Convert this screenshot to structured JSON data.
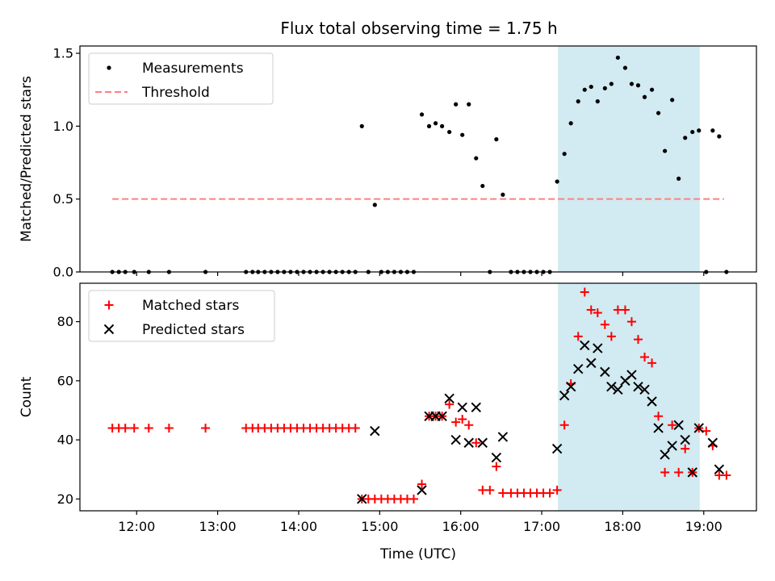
{
  "chart_data": {
    "title": "Flux total observing time = 1.75 h",
    "xlabel": "Time (UTC)",
    "x_ticks": [
      "12:00",
      "13:00",
      "14:00",
      "15:00",
      "16:00",
      "17:00",
      "18:00",
      "19:00"
    ],
    "x_tick_hours": [
      12,
      13,
      14,
      15,
      16,
      17,
      18,
      19
    ],
    "x_range_hours": [
      11.3,
      19.65
    ],
    "shaded_span_hours": [
      17.2,
      18.95
    ],
    "shade_color": "#add8e6",
    "panels": [
      {
        "type": "scatter",
        "ylabel": "Matched/Predicted stars",
        "ylim": [
          0,
          1.55
        ],
        "y_ticks": [
          0.0,
          0.5,
          1.0,
          1.5
        ],
        "y_tick_labels": [
          "0.0",
          "0.5",
          "1.0",
          "1.5"
        ],
        "legend_placement": "top-left",
        "series": [
          {
            "name": "Measurements",
            "marker": "dot",
            "color": "#000000",
            "points": [
              [
                11.7,
                0
              ],
              [
                11.78,
                0
              ],
              [
                11.86,
                0
              ],
              [
                11.97,
                0
              ],
              [
                12.15,
                0
              ],
              [
                12.4,
                0
              ],
              [
                12.85,
                0
              ],
              [
                13.35,
                0
              ],
              [
                13.43,
                0
              ],
              [
                13.5,
                0
              ],
              [
                13.58,
                0
              ],
              [
                13.66,
                0
              ],
              [
                13.74,
                0
              ],
              [
                13.82,
                0
              ],
              [
                13.9,
                0
              ],
              [
                13.98,
                0
              ],
              [
                14.06,
                0
              ],
              [
                14.14,
                0
              ],
              [
                14.22,
                0
              ],
              [
                14.3,
                0
              ],
              [
                14.38,
                0
              ],
              [
                14.46,
                0
              ],
              [
                14.54,
                0
              ],
              [
                14.62,
                0
              ],
              [
                14.7,
                0
              ],
              [
                14.78,
                1.0
              ],
              [
                14.86,
                0
              ],
              [
                14.94,
                0.46
              ],
              [
                15.02,
                0
              ],
              [
                15.1,
                0
              ],
              [
                15.18,
                0
              ],
              [
                15.26,
                0
              ],
              [
                15.34,
                0
              ],
              [
                15.42,
                0
              ],
              [
                15.52,
                1.08
              ],
              [
                15.61,
                1.0
              ],
              [
                15.69,
                1.02
              ],
              [
                15.77,
                1.0
              ],
              [
                15.86,
                0.96
              ],
              [
                15.94,
                1.15
              ],
              [
                16.02,
                0.94
              ],
              [
                16.1,
                1.15
              ],
              [
                16.19,
                0.78
              ],
              [
                16.27,
                0.59
              ],
              [
                16.36,
                0
              ],
              [
                16.44,
                0.91
              ],
              [
                16.52,
                0.53
              ],
              [
                16.62,
                0
              ],
              [
                16.7,
                0
              ],
              [
                16.78,
                0
              ],
              [
                16.86,
                0
              ],
              [
                16.94,
                0
              ],
              [
                17.02,
                0
              ],
              [
                17.1,
                0
              ],
              [
                17.19,
                0.62
              ],
              [
                17.28,
                0.81
              ],
              [
                17.36,
                1.02
              ],
              [
                17.45,
                1.17
              ],
              [
                17.53,
                1.25
              ],
              [
                17.61,
                1.27
              ],
              [
                17.69,
                1.17
              ],
              [
                17.78,
                1.26
              ],
              [
                17.86,
                1.29
              ],
              [
                17.94,
                1.47
              ],
              [
                18.03,
                1.4
              ],
              [
                18.11,
                1.29
              ],
              [
                18.19,
                1.28
              ],
              [
                18.27,
                1.2
              ],
              [
                18.36,
                1.25
              ],
              [
                18.44,
                1.09
              ],
              [
                18.52,
                0.83
              ],
              [
                18.61,
                1.18
              ],
              [
                18.69,
                0.64
              ],
              [
                18.77,
                0.92
              ],
              [
                18.86,
                0.96
              ],
              [
                18.94,
                0.97
              ],
              [
                19.03,
                0
              ],
              [
                19.11,
                0.97
              ],
              [
                19.19,
                0.93
              ],
              [
                19.28,
                0
              ]
            ]
          },
          {
            "name": "Threshold",
            "marker": "dashed-line",
            "color": "#ff7f7f",
            "points": [
              [
                11.7,
                0.5
              ],
              [
                19.25,
                0.5
              ]
            ]
          }
        ]
      },
      {
        "type": "scatter",
        "ylabel": "Count",
        "ylim": [
          16,
          93
        ],
        "y_ticks": [
          20,
          40,
          60,
          80
        ],
        "y_tick_labels": [
          "20",
          "40",
          "60",
          "80"
        ],
        "legend_placement": "top-left",
        "series": [
          {
            "name": "Matched stars",
            "marker": "plus",
            "color": "#ff0000",
            "points": [
              [
                11.7,
                44
              ],
              [
                11.78,
                44
              ],
              [
                11.86,
                44
              ],
              [
                11.97,
                44
              ],
              [
                12.15,
                44
              ],
              [
                12.4,
                44
              ],
              [
                12.85,
                44
              ],
              [
                13.35,
                44
              ],
              [
                13.43,
                44
              ],
              [
                13.5,
                44
              ],
              [
                13.58,
                44
              ],
              [
                13.66,
                44
              ],
              [
                13.74,
                44
              ],
              [
                13.82,
                44
              ],
              [
                13.9,
                44
              ],
              [
                13.98,
                44
              ],
              [
                14.06,
                44
              ],
              [
                14.14,
                44
              ],
              [
                14.22,
                44
              ],
              [
                14.3,
                44
              ],
              [
                14.38,
                44
              ],
              [
                14.46,
                44
              ],
              [
                14.54,
                44
              ],
              [
                14.62,
                44
              ],
              [
                14.7,
                44
              ],
              [
                14.78,
                20
              ],
              [
                14.86,
                20
              ],
              [
                14.94,
                20
              ],
              [
                15.02,
                20
              ],
              [
                15.1,
                20
              ],
              [
                15.18,
                20
              ],
              [
                15.26,
                20
              ],
              [
                15.34,
                20
              ],
              [
                15.42,
                20
              ],
              [
                15.52,
                25
              ],
              [
                15.61,
                48
              ],
              [
                15.69,
                48
              ],
              [
                15.77,
                48
              ],
              [
                15.86,
                52
              ],
              [
                15.94,
                46
              ],
              [
                16.02,
                47
              ],
              [
                16.1,
                45
              ],
              [
                16.19,
                39
              ],
              [
                16.27,
                23
              ],
              [
                16.36,
                23
              ],
              [
                16.44,
                31
              ],
              [
                16.52,
                22
              ],
              [
                16.62,
                22
              ],
              [
                16.7,
                22
              ],
              [
                16.78,
                22
              ],
              [
                16.86,
                22
              ],
              [
                16.94,
                22
              ],
              [
                17.02,
                22
              ],
              [
                17.1,
                22
              ],
              [
                17.19,
                23
              ],
              [
                17.28,
                45
              ],
              [
                17.36,
                59
              ],
              [
                17.45,
                75
              ],
              [
                17.53,
                90
              ],
              [
                17.61,
                84
              ],
              [
                17.69,
                83
              ],
              [
                17.78,
                79
              ],
              [
                17.86,
                75
              ],
              [
                17.94,
                84
              ],
              [
                18.03,
                84
              ],
              [
                18.11,
                80
              ],
              [
                18.19,
                74
              ],
              [
                18.27,
                68
              ],
              [
                18.36,
                66
              ],
              [
                18.44,
                48
              ],
              [
                18.52,
                29
              ],
              [
                18.61,
                45
              ],
              [
                18.69,
                29
              ],
              [
                18.77,
                37
              ],
              [
                18.86,
                29
              ],
              [
                18.94,
                44
              ],
              [
                19.03,
                43
              ],
              [
                19.11,
                38
              ],
              [
                19.19,
                28
              ],
              [
                19.28,
                28
              ]
            ]
          },
          {
            "name": "Predicted stars",
            "marker": "x",
            "color": "#000000",
            "points": [
              [
                14.78,
                20
              ],
              [
                14.94,
                43
              ],
              [
                15.52,
                23
              ],
              [
                15.61,
                48
              ],
              [
                15.69,
                48
              ],
              [
                15.77,
                48
              ],
              [
                15.86,
                54
              ],
              [
                15.94,
                40
              ],
              [
                16.02,
                51
              ],
              [
                16.1,
                39
              ],
              [
                16.19,
                51
              ],
              [
                16.27,
                39
              ],
              [
                16.44,
                34
              ],
              [
                16.52,
                41
              ],
              [
                17.19,
                37
              ],
              [
                17.28,
                55
              ],
              [
                17.36,
                58
              ],
              [
                17.45,
                64
              ],
              [
                17.53,
                72
              ],
              [
                17.61,
                66
              ],
              [
                17.69,
                71
              ],
              [
                17.78,
                63
              ],
              [
                17.86,
                58
              ],
              [
                17.94,
                57
              ],
              [
                18.03,
                60
              ],
              [
                18.11,
                62
              ],
              [
                18.19,
                58
              ],
              [
                18.27,
                57
              ],
              [
                18.36,
                53
              ],
              [
                18.44,
                44
              ],
              [
                18.52,
                35
              ],
              [
                18.61,
                38
              ],
              [
                18.69,
                45
              ],
              [
                18.77,
                40
              ],
              [
                18.86,
                29
              ],
              [
                18.94,
                44
              ],
              [
                19.11,
                39
              ],
              [
                19.19,
                30
              ]
            ]
          }
        ]
      }
    ]
  }
}
